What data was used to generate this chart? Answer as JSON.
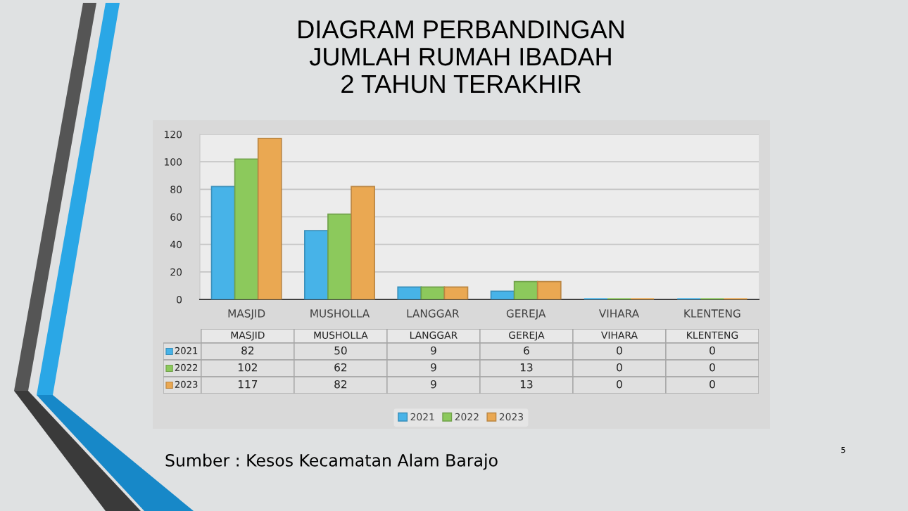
{
  "chart_data": {
    "type": "bar",
    "title": "DIAGRAM PERBANDINGAN\nJUMLAH RUMAH IBADAH\n2 TAHUN TERAKHIR",
    "categories": [
      "MASJID",
      "MUSHOLLA",
      "LANGGAR",
      "GEREJA",
      "VIHARA",
      "KLENTENG"
    ],
    "series": [
      {
        "name": "2021",
        "color": "#47b3e8",
        "values": [
          82,
          50,
          9,
          6,
          0,
          0
        ]
      },
      {
        "name": "2022",
        "color": "#8cc95c",
        "values": [
          102,
          62,
          9,
          13,
          0,
          0
        ]
      },
      {
        "name": "2023",
        "color": "#eaa852",
        "values": [
          117,
          82,
          9,
          13,
          0,
          0
        ]
      }
    ],
    "ylim": [
      0,
      120
    ],
    "yticks": [
      0,
      20,
      40,
      60,
      80,
      100,
      120
    ],
    "grid": "y",
    "legend": "bottom",
    "data_labels": true,
    "annotations": [
      "Sumber : Kesos Kecamatan Alam Barajo",
      "5"
    ]
  }
}
